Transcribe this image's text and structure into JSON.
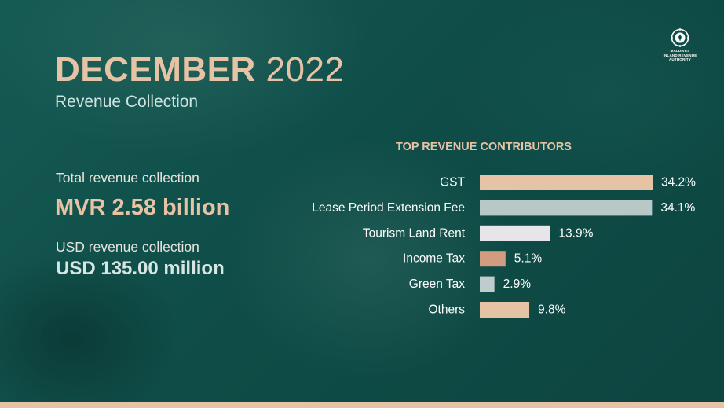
{
  "header": {
    "title_month": "DECEMBER",
    "title_year": "2022",
    "subtitle": "Revenue Collection"
  },
  "logo": {
    "line1": "MALDIVES",
    "line2": "INLAND REVENUE",
    "line3": "AUTHORITY",
    "icon": "mira-emblem-icon"
  },
  "stats": {
    "total_label": "Total revenue collection",
    "total_value": "MVR 2.58 billion",
    "usd_label": "USD revenue collection",
    "usd_value": "USD 135.00 million"
  },
  "chart_data": {
    "type": "bar",
    "orientation": "horizontal",
    "title": "TOP REVENUE CONTRIBUTORS",
    "categories": [
      "GST",
      "Lease Period Extension Fee",
      "Tourism Land Rent",
      "Income Tax",
      "Green Tax",
      "Others"
    ],
    "values": [
      34.2,
      34.1,
      13.9,
      5.1,
      2.9,
      9.8
    ],
    "value_labels": [
      "34.2%",
      "34.1%",
      "13.9%",
      "5.1%",
      "2.9%",
      "9.8%"
    ],
    "unit": "%",
    "colors": [
      "#e7c3a6",
      "#b8c8c7",
      "#e6e5ea",
      "#d29c80",
      "#bfcccd",
      "#e7c3a6"
    ],
    "grid": false,
    "legend": "none"
  },
  "colors": {
    "accent": "#e7c3a6",
    "background": "#0f4a45",
    "bottom_bar": "#e7c3a6"
  }
}
